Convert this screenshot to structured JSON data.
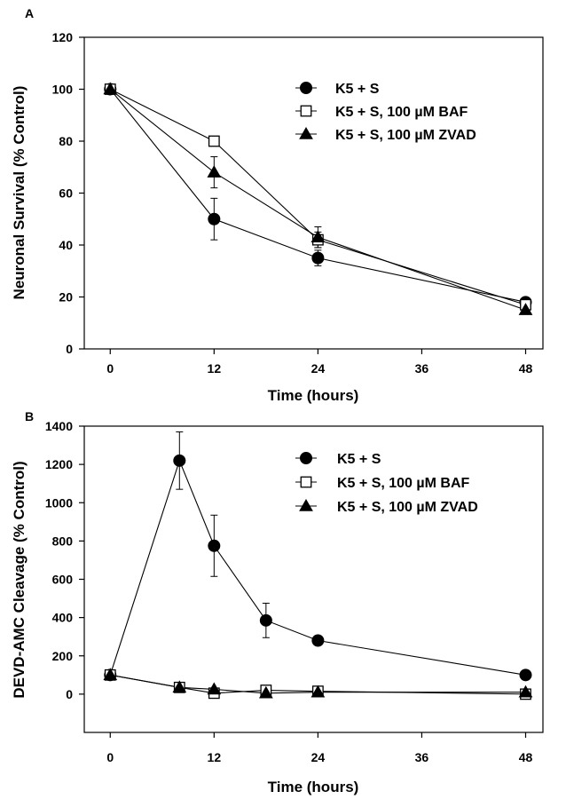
{
  "chart_data": [
    {
      "panel": "A",
      "type": "line",
      "title": "",
      "xlabel": "Time (hours)",
      "ylabel": "Neuronal Survival (% Control)",
      "xlim": [
        -3,
        50
      ],
      "ylim": [
        0,
        120
      ],
      "xticks": [
        0,
        12,
        24,
        36,
        48
      ],
      "yticks": [
        0,
        20,
        40,
        60,
        80,
        100,
        120
      ],
      "grid": false,
      "legend_position": "top-right",
      "series": [
        {
          "name": "K5 + S",
          "marker": "filled-circle",
          "x": [
            0,
            12,
            24,
            48
          ],
          "y": [
            100,
            50,
            35,
            18
          ],
          "err": [
            1,
            8,
            3,
            1
          ]
        },
        {
          "name": "K5 + S, 100 µM BAF",
          "marker": "open-square",
          "x": [
            0,
            12,
            24,
            48
          ],
          "y": [
            100,
            80,
            42,
            17
          ],
          "err": [
            0,
            0,
            3,
            0
          ]
        },
        {
          "name": "K5 + S, 100 µM ZVAD",
          "marker": "filled-triangle",
          "x": [
            0,
            12,
            24,
            48
          ],
          "y": [
            100,
            68,
            43,
            15
          ],
          "err": [
            1,
            6,
            4,
            0
          ]
        }
      ]
    },
    {
      "panel": "B",
      "type": "line",
      "title": "",
      "xlabel": "Time (hours)",
      "ylabel": "DEVD-AMC Cleavage (% Control)",
      "xlim": [
        -3,
        50
      ],
      "ylim": [
        -200,
        1400
      ],
      "xticks": [
        0,
        12,
        24,
        36,
        48
      ],
      "yticks": [
        0,
        200,
        400,
        600,
        800,
        1000,
        1200,
        1400
      ],
      "grid": false,
      "legend_position": "top-right",
      "series": [
        {
          "name": "K5 + S",
          "marker": "filled-circle",
          "x": [
            0,
            8,
            12,
            18,
            24,
            48
          ],
          "y": [
            100,
            1220,
            775,
            385,
            280,
            100
          ],
          "err": [
            15,
            150,
            160,
            90,
            10,
            10
          ]
        },
        {
          "name": "K5 + S, 100 µM BAF",
          "marker": "open-square",
          "x": [
            0,
            8,
            12,
            18,
            24,
            48
          ],
          "y": [
            100,
            35,
            5,
            20,
            15,
            0
          ],
          "err": [
            5,
            5,
            5,
            5,
            5,
            5
          ]
        },
        {
          "name": "K5 + S, 100 µM ZVAD",
          "marker": "filled-triangle",
          "x": [
            0,
            8,
            12,
            18,
            24,
            48
          ],
          "y": [
            100,
            35,
            25,
            5,
            10,
            10
          ],
          "err": [
            5,
            5,
            5,
            5,
            5,
            5
          ]
        }
      ]
    }
  ]
}
